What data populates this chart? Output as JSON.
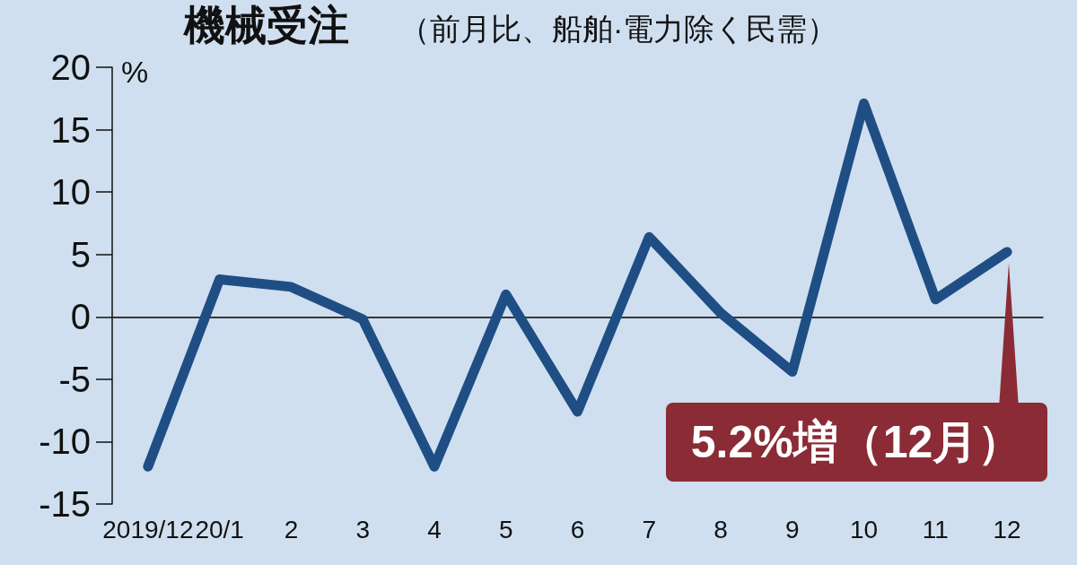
{
  "chart_data": {
    "type": "line",
    "title": "機械受注",
    "subtitle": "（前月比、船舶·電力除く民需）",
    "ylabel": "%",
    "categories": [
      "2019/12",
      "20/1",
      "2",
      "3",
      "4",
      "5",
      "6",
      "7",
      "8",
      "9",
      "10",
      "11",
      "12"
    ],
    "series": [
      {
        "color": "#1f4e84",
        "values": [
          -12.0,
          3.0,
          2.4,
          -0.2,
          -12.0,
          1.8,
          -7.6,
          6.4,
          0.3,
          -4.4,
          17.1,
          1.4,
          5.2
        ]
      }
    ],
    "ylim": [
      -15,
      20
    ],
    "yticks": [
      -15,
      -10,
      -5,
      0,
      5,
      10,
      15,
      20
    ],
    "grid": false,
    "ref_lines": [
      {
        "axis": "y",
        "value": 0,
        "color": "#333333"
      }
    ],
    "annotations": [
      "5.2%増（12月）"
    ]
  }
}
